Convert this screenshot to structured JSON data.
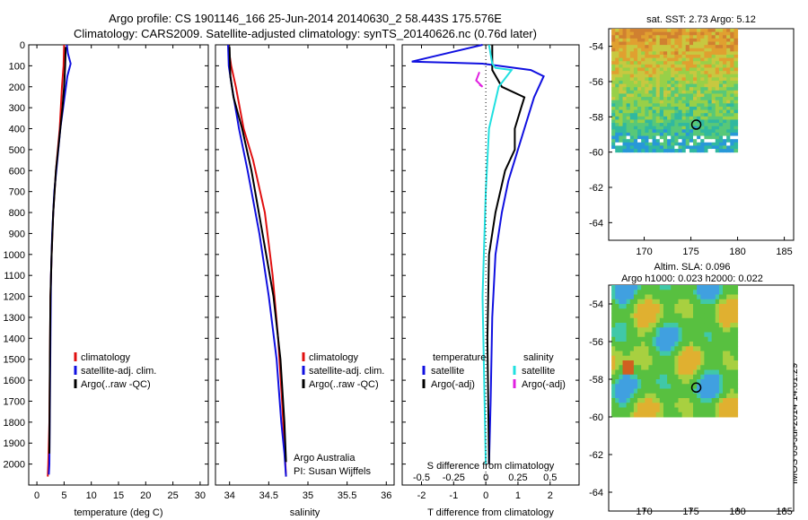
{
  "header": {
    "line1": "Argo profile: CS 1901146_166 25-Jun-2014 20140630_2 58.443S 175.576E",
    "line2": "Climatology: CARS2009. Satellite-adjusted climatology: synTS_20140626.nc (0.76d later)"
  },
  "colors": {
    "climatology": "#e01010",
    "satellite": "#1010e0",
    "argo": "#000000",
    "sal_satellite": "#20e0e0",
    "sal_argo": "#e020e0"
  },
  "chart_data": [
    {
      "type": "line",
      "name": "temperature-panel",
      "xlabel": "temperature (deg C)",
      "ylim": [
        2100,
        0
      ],
      "xlim": [
        -1.5,
        31.5
      ],
      "xticks": [
        "0",
        "5",
        "10",
        "15",
        "20",
        "25",
        "30"
      ],
      "yticks": [
        "0",
        "100",
        "200",
        "300",
        "400",
        "500",
        "600",
        "700",
        "800",
        "900",
        "1000",
        "1100",
        "1200",
        "1300",
        "1400",
        "1500",
        "1600",
        "1700",
        "1800",
        "1900",
        "2000"
      ],
      "legend": [
        "climatology",
        "satellite-adj. clim.",
        "Argo(..raw -QC)"
      ],
      "series": [
        {
          "name": "climatology",
          "color": "#e01010",
          "x": [
            5.0,
            4.9,
            4.6,
            4.2,
            3.5,
            3.0,
            2.7,
            2.5,
            2.4,
            2.3,
            2.1,
            2.0
          ],
          "y": [
            0,
            100,
            200,
            400,
            600,
            800,
            1000,
            1200,
            1500,
            1800,
            2000,
            2060
          ]
        },
        {
          "name": "satellite-adj. clim.",
          "color": "#1010e0",
          "x": [
            5.5,
            5.7,
            6.2,
            5.6,
            4.3,
            3.2,
            2.8,
            2.6,
            2.5,
            2.4,
            2.3,
            2.2
          ],
          "y": [
            0,
            40,
            90,
            150,
            400,
            700,
            900,
            1100,
            1400,
            1700,
            2000,
            2050
          ]
        },
        {
          "name": "Argo(..raw -QC)",
          "color": "#000000",
          "x": [
            5.3,
            5.2,
            5.0,
            4.7,
            3.5,
            3.0,
            2.7,
            2.5,
            2.4,
            2.3
          ],
          "y": [
            10,
            100,
            200,
            300,
            600,
            800,
            1000,
            1200,
            1500,
            1950
          ]
        }
      ]
    },
    {
      "type": "line",
      "name": "salinity-panel",
      "xlabel": "salinity",
      "ylim": [
        2100,
        0
      ],
      "xlim": [
        33.82,
        36.1
      ],
      "xticks": [
        "34",
        "34.5",
        "35",
        "35.5",
        "36"
      ],
      "legend": [
        "climatology",
        "satellite-adj. clim.",
        "Argo(..raw -QC)"
      ],
      "series": [
        {
          "name": "climatology",
          "color": "#e01010",
          "x": [
            33.98,
            34.02,
            34.08,
            34.18,
            34.3,
            34.45,
            34.55,
            34.62,
            34.67,
            34.7,
            34.72
          ],
          "y": [
            0,
            100,
            200,
            400,
            550,
            800,
            1100,
            1400,
            1700,
            1900,
            2060
          ]
        },
        {
          "name": "satellite-adj. clim.",
          "color": "#1010e0",
          "x": [
            33.98,
            33.99,
            34.03,
            34.12,
            34.23,
            34.38,
            34.5,
            34.6,
            34.66,
            34.7,
            34.72
          ],
          "y": [
            0,
            100,
            200,
            400,
            600,
            900,
            1200,
            1500,
            1800,
            1950,
            2060
          ]
        },
        {
          "name": "Argo(..raw -QC)",
          "color": "#000000",
          "x": [
            34.0,
            34.01,
            34.05,
            34.16,
            34.28,
            34.42,
            34.56,
            34.65,
            34.7,
            34.72
          ],
          "y": [
            10,
            150,
            250,
            400,
            600,
            900,
            1200,
            1500,
            1800,
            1990
          ]
        }
      ],
      "annotation": [
        "Argo Australia",
        "PI: Susan Wijffels"
      ]
    },
    {
      "type": "line",
      "name": "difference-panel",
      "xlabel": "T difference from climatology",
      "xlabel_top": "S difference from climatology",
      "ylim": [
        2100,
        0
      ],
      "xlim": [
        -2.6,
        2.9
      ],
      "xticks": [
        "-2",
        "-1",
        "0",
        "1",
        "2"
      ],
      "xticks_s": [
        "-0.5",
        "-0.25",
        "0",
        "0.25",
        "0.5"
      ],
      "legend_titles": [
        "temperature",
        "salinity"
      ],
      "legend": [
        "satellite",
        "Argo(-adj)",
        "satellite",
        "Argo(-adj)"
      ],
      "series": [
        {
          "name": "temperature satellite",
          "color": "#1010e0",
          "x": [
            -0.1,
            -2.3,
            -0.1,
            0.4,
            1.4,
            1.8,
            1.5,
            1.2,
            1.0,
            0.7,
            0.5,
            0.3,
            0.2,
            0.15,
            0.1
          ],
          "y": [
            0,
            80,
            90,
            100,
            120,
            150,
            250,
            400,
            500,
            650,
            800,
            1000,
            1300,
            1700,
            2000
          ]
        },
        {
          "name": "temperature Argo(-adj)",
          "color": "#000000",
          "x": [
            0.2,
            0.2,
            0.5,
            1.2,
            1.1,
            0.9,
            0.9,
            0.6,
            0.3,
            0.1,
            0.05,
            0.1
          ],
          "y": [
            0,
            120,
            200,
            250,
            300,
            400,
            500,
            600,
            800,
            1000,
            1400,
            2000
          ]
        },
        {
          "name": "salinity satellite",
          "color": "#20e0e0",
          "x": [
            0.1,
            0.2,
            0.3,
            0.8,
            0.4,
            0.1,
            0.0,
            -0.1,
            -0.05,
            0.0
          ],
          "y": [
            0,
            90,
            110,
            120,
            200,
            400,
            700,
            1200,
            1600,
            2000
          ]
        },
        {
          "name": "salinity Argo(-adj)",
          "color": "#e020e0",
          "x": [
            -0.2,
            -0.3,
            -0.1,
            -0.2
          ],
          "y": [
            130,
            170,
            200,
            190
          ]
        }
      ]
    }
  ],
  "maps": [
    {
      "title": "sat. SST: 2.73 Argo: 5.12",
      "xticks": [
        "170",
        "175",
        "180",
        "185"
      ],
      "yticks": [
        "-54",
        "-56",
        "-58",
        "-60",
        "-62",
        "-64"
      ],
      "marker": {
        "lon": 175.576,
        "lat": -58.443
      },
      "field": "sst"
    },
    {
      "title_line1": "Altim. SLA: 0.096",
      "title_line2": "Argo h1000: 0.023 h2000: 0.022",
      "xticks": [
        "170",
        "175",
        "180",
        "185"
      ],
      "yticks": [
        "-54",
        "-56",
        "-58",
        "-60",
        "-62",
        "-64"
      ],
      "marker": {
        "lon": 175.576,
        "lat": -58.443
      },
      "field": "sla"
    }
  ],
  "footer_stamp": "IMOS 03-Jul-2014 14:01:29"
}
